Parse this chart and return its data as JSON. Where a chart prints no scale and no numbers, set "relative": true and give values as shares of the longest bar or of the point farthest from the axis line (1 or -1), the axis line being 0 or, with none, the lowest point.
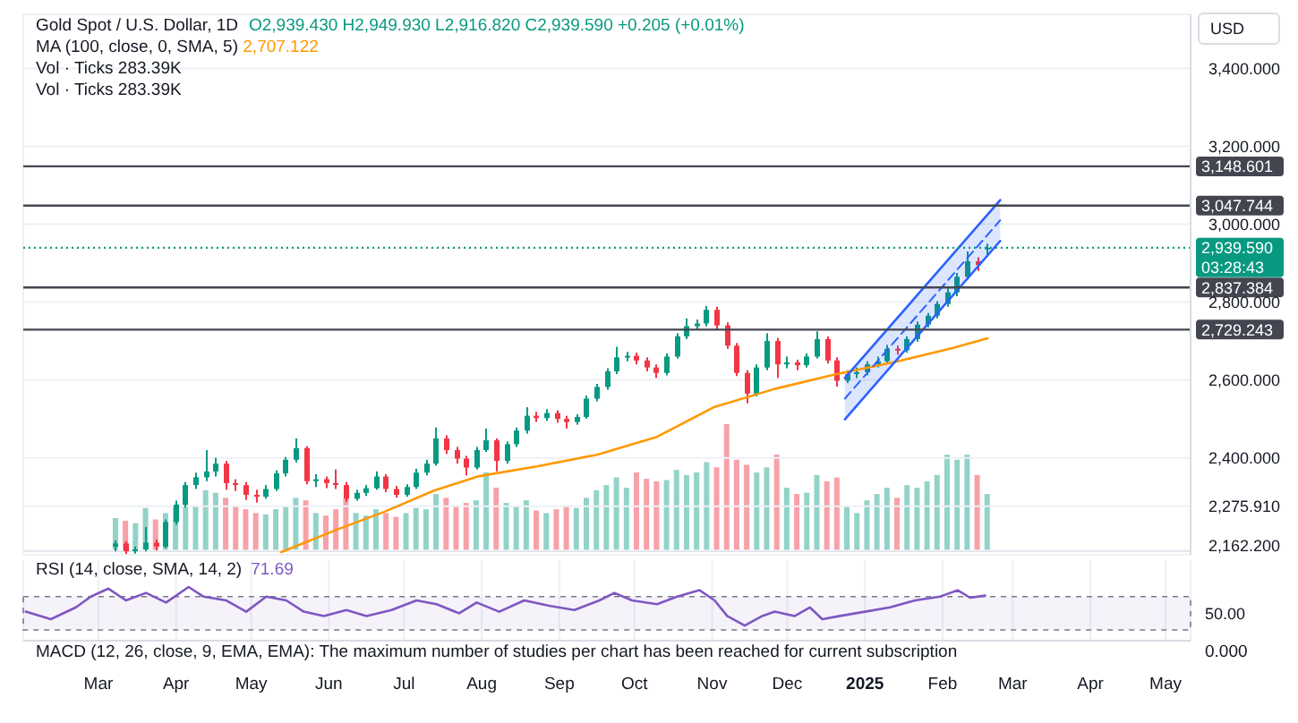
{
  "chart_data": [
    {
      "type": "candlestick",
      "title": "Gold Spot / U.S. Dollar, 1D",
      "ylabel": "USD",
      "annotations": [
        "O2,939.430 H2,949.930 L2,916.820 C2,939.590 +0.205 (+0.01%)",
        "MA (100, close, 0, SMA, 5) 2,707.122",
        "03:28:43"
      ],
      "x": [
        "2024-03-08",
        "2024-03-12",
        "2024-03-16",
        "2024-03-20",
        "2024-03-24",
        "2024-03-28",
        "2024-04-01",
        "2024-04-05",
        "2024-04-09",
        "2024-04-13",
        "2024-04-17",
        "2024-04-21",
        "2024-04-25",
        "2024-04-29",
        "2024-05-03",
        "2024-05-07",
        "2024-05-11",
        "2024-05-15",
        "2024-05-19",
        "2024-05-23",
        "2024-05-27",
        "2024-05-31",
        "2024-06-04",
        "2024-06-08",
        "2024-06-12",
        "2024-06-16",
        "2024-06-20",
        "2024-06-24",
        "2024-06-28",
        "2024-07-02",
        "2024-07-06",
        "2024-07-10",
        "2024-07-14",
        "2024-07-18",
        "2024-07-22",
        "2024-07-26",
        "2024-07-30",
        "2024-08-03",
        "2024-08-07",
        "2024-08-11",
        "2024-08-15",
        "2024-08-19",
        "2024-08-23",
        "2024-08-27",
        "2024-08-31",
        "2024-09-04",
        "2024-09-08",
        "2024-09-12",
        "2024-09-16",
        "2024-09-20",
        "2024-09-24",
        "2024-09-28",
        "2024-10-02",
        "2024-10-06",
        "2024-10-10",
        "2024-10-14",
        "2024-10-18",
        "2024-10-22",
        "2024-10-26",
        "2024-10-30",
        "2024-11-03",
        "2024-11-07",
        "2024-11-11",
        "2024-11-15",
        "2024-11-19",
        "2024-11-23",
        "2024-11-27",
        "2024-12-01",
        "2024-12-05",
        "2024-12-09",
        "2024-12-13",
        "2024-12-17",
        "2024-12-21",
        "2024-12-25",
        "2024-12-29",
        "2025-01-02",
        "2025-01-06",
        "2025-01-10",
        "2025-01-14",
        "2025-01-18",
        "2025-01-22",
        "2025-01-26",
        "2025-01-30",
        "2025-02-03",
        "2025-02-07",
        "2025-02-11",
        "2025-02-15",
        "2025-02-19"
      ],
      "ohlc": [
        [
          2172,
          2188,
          2160,
          2180
        ],
        [
          2180,
          2186,
          2153,
          2160
        ],
        [
          2160,
          2172,
          2154,
          2165
        ],
        [
          2165,
          2222,
          2160,
          2182
        ],
        [
          2182,
          2190,
          2162,
          2172
        ],
        [
          2172,
          2242,
          2168,
          2235
        ],
        [
          2235,
          2290,
          2228,
          2280
        ],
        [
          2280,
          2338,
          2272,
          2330
        ],
        [
          2330,
          2362,
          2320,
          2350
        ],
        [
          2350,
          2420,
          2340,
          2365
        ],
        [
          2365,
          2400,
          2352,
          2385
        ],
        [
          2385,
          2392,
          2318,
          2335
        ],
        [
          2335,
          2345,
          2315,
          2330
        ],
        [
          2330,
          2338,
          2292,
          2305
        ],
        [
          2305,
          2318,
          2285,
          2300
        ],
        [
          2300,
          2330,
          2295,
          2320
        ],
        [
          2320,
          2368,
          2315,
          2360
        ],
        [
          2360,
          2402,
          2352,
          2395
        ],
        [
          2395,
          2450,
          2388,
          2425
        ],
        [
          2425,
          2430,
          2332,
          2340
        ],
        [
          2340,
          2358,
          2325,
          2345
        ],
        [
          2345,
          2352,
          2322,
          2335
        ],
        [
          2335,
          2370,
          2320,
          2330
        ],
        [
          2330,
          2338,
          2287,
          2295
        ],
        [
          2295,
          2318,
          2290,
          2310
        ],
        [
          2310,
          2330,
          2302,
          2322
        ],
        [
          2322,
          2365,
          2318,
          2352
        ],
        [
          2352,
          2358,
          2312,
          2320
        ],
        [
          2320,
          2328,
          2298,
          2305
        ],
        [
          2305,
          2332,
          2300,
          2325
        ],
        [
          2325,
          2372,
          2320,
          2362
        ],
        [
          2362,
          2395,
          2355,
          2385
        ],
        [
          2385,
          2478,
          2380,
          2450
        ],
        [
          2450,
          2458,
          2410,
          2420
        ],
        [
          2420,
          2428,
          2385,
          2398
        ],
        [
          2398,
          2405,
          2355,
          2375
        ],
        [
          2375,
          2428,
          2370,
          2420
        ],
        [
          2420,
          2475,
          2415,
          2445
        ],
        [
          2445,
          2450,
          2365,
          2392
        ],
        [
          2392,
          2442,
          2385,
          2435
        ],
        [
          2435,
          2478,
          2428,
          2470
        ],
        [
          2470,
          2530,
          2462,
          2508
        ],
        [
          2508,
          2518,
          2492,
          2502
        ],
        [
          2502,
          2525,
          2495,
          2515
        ],
        [
          2515,
          2522,
          2490,
          2500
        ],
        [
          2500,
          2508,
          2475,
          2492
        ],
        [
          2492,
          2512,
          2485,
          2505
        ],
        [
          2505,
          2560,
          2500,
          2552
        ],
        [
          2552,
          2590,
          2545,
          2582
        ],
        [
          2582,
          2630,
          2575,
          2622
        ],
        [
          2622,
          2685,
          2615,
          2658
        ],
        [
          2658,
          2672,
          2648,
          2662
        ],
        [
          2662,
          2670,
          2640,
          2650
        ],
        [
          2650,
          2658,
          2622,
          2632
        ],
        [
          2632,
          2640,
          2605,
          2618
        ],
        [
          2618,
          2668,
          2612,
          2660
        ],
        [
          2660,
          2720,
          2655,
          2712
        ],
        [
          2712,
          2758,
          2705,
          2738
        ],
        [
          2738,
          2755,
          2728,
          2745
        ],
        [
          2745,
          2790,
          2738,
          2780
        ],
        [
          2780,
          2788,
          2730,
          2740
        ],
        [
          2740,
          2748,
          2680,
          2688
        ],
        [
          2688,
          2695,
          2610,
          2618
        ],
        [
          2618,
          2625,
          2540,
          2565
        ],
        [
          2565,
          2640,
          2558,
          2632
        ],
        [
          2632,
          2720,
          2625,
          2700
        ],
        [
          2700,
          2708,
          2605,
          2640
        ],
        [
          2640,
          2660,
          2630,
          2645
        ],
        [
          2645,
          2652,
          2625,
          2638
        ],
        [
          2638,
          2668,
          2632,
          2660
        ],
        [
          2660,
          2725,
          2655,
          2705
        ],
        [
          2705,
          2712,
          2642,
          2650
        ],
        [
          2650,
          2658,
          2583,
          2598
        ],
        [
          2598,
          2625,
          2592,
          2615
        ],
        [
          2615,
          2632,
          2605,
          2620
        ],
        [
          2620,
          2648,
          2612,
          2640
        ],
        [
          2640,
          2660,
          2632,
          2648
        ],
        [
          2648,
          2690,
          2642,
          2680
        ],
        [
          2680,
          2688,
          2665,
          2676
        ],
        [
          2676,
          2712,
          2670,
          2705
        ],
        [
          2705,
          2750,
          2698,
          2742
        ],
        [
          2742,
          2772,
          2735,
          2765
        ],
        [
          2765,
          2802,
          2758,
          2795
        ],
        [
          2795,
          2835,
          2788,
          2825
        ],
        [
          2825,
          2875,
          2815,
          2865
        ],
        [
          2865,
          2930,
          2858,
          2905
        ],
        [
          2905,
          2915,
          2880,
          2895
        ],
        [
          2939.43,
          2949.93,
          2916.82,
          2939.59
        ]
      ],
      "colors": [
        "#089981",
        "#f23645",
        "#089981",
        "#089981",
        "#f23645",
        "#089981",
        "#089981",
        "#089981",
        "#089981",
        "#089981",
        "#089981",
        "#f23645",
        "#f23645",
        "#f23645",
        "#f23645",
        "#089981",
        "#089981",
        "#089981",
        "#089981",
        "#f23645",
        "#089981",
        "#f23645",
        "#f23645",
        "#f23645",
        "#089981",
        "#089981",
        "#089981",
        "#f23645",
        "#f23645",
        "#089981",
        "#089981",
        "#089981",
        "#089981",
        "#f23645",
        "#f23645",
        "#f23645",
        "#089981",
        "#089981",
        "#f23645",
        "#089981",
        "#089981",
        "#089981",
        "#f23645",
        "#089981",
        "#f23645",
        "#f23645",
        "#089981",
        "#089981",
        "#089981",
        "#089981",
        "#089981",
        "#089981",
        "#f23645",
        "#f23645",
        "#f23645",
        "#089981",
        "#089981",
        "#089981",
        "#089981",
        "#089981",
        "#f23645",
        "#f23645",
        "#f23645",
        "#f23645",
        "#089981",
        "#089981",
        "#f23645",
        "#089981",
        "#f23645",
        "#089981",
        "#089981",
        "#f23645",
        "#f23645",
        "#089981",
        "#089981",
        "#089981",
        "#089981",
        "#089981",
        "#f23645",
        "#089981",
        "#089981",
        "#089981",
        "#089981",
        "#089981",
        "#089981",
        "#089981",
        "#f23645",
        "#089981"
      ],
      "series": [
        {
          "type": "line",
          "color": "#ff9800",
          "x": [
            "2024-05-13",
            "2024-06-04",
            "2024-06-23",
            "2024-07-13",
            "2024-07-31",
            "2024-08-23",
            "2024-09-16",
            "2024-10-10",
            "2024-11-02",
            "2024-11-26",
            "2024-12-20",
            "2025-01-13",
            "2025-02-05",
            "2025-02-19"
          ],
          "values": [
            2158,
            2215,
            2261,
            2316,
            2353,
            2378,
            2408,
            2454,
            2531,
            2577,
            2614,
            2646,
            2682,
            2707.122
          ]
        },
        {
          "type": "line",
          "color": "#2962ff",
          "x": [
            "2024-12-24",
            "2025-02-24"
          ],
          "values": [
            2605,
            3062
          ]
        },
        {
          "type": "line",
          "color": "#2962ff",
          "x": [
            "2024-12-24",
            "2025-02-24"
          ],
          "values": [
            2499,
            2957
          ]
        },
        {
          "type": "line",
          "color": "#2962ff",
          "line_style": "dashed",
          "x": [
            "2024-12-24",
            "2025-02-24"
          ],
          "values": [
            2552,
            3010
          ],
          "lower": [
            2499,
            2957
          ],
          "upper": [
            2605,
            3062
          ]
        }
      ],
      "ref_lines": [
        {
          "axis": "y",
          "value": 3148.601,
          "label": "3,148.601",
          "color": "#434651"
        },
        {
          "axis": "y",
          "value": 3047.744,
          "label": "3,047.744",
          "color": "#434651"
        },
        {
          "axis": "y",
          "value": 2939.59,
          "label": "2,939.590",
          "color": "#089981",
          "line_style": "dotted"
        },
        {
          "axis": "y",
          "value": 2837.384,
          "label": "2,837.384",
          "color": "#434651"
        },
        {
          "axis": "y",
          "value": 2729.243,
          "label": "2,729.243",
          "color": "#434651"
        }
      ],
      "xlim": [
        "2024-01-31",
        "2025-05-11"
      ],
      "xticks": [
        "2024-03-01",
        "2024-04-01",
        "2024-05-01",
        "2024-06-01",
        "2024-07-01",
        "2024-08-01",
        "2024-09-01",
        "2024-10-01",
        "2024-11-01",
        "2024-12-01",
        "2025-01-01",
        "2025-02-01",
        "2025-03-01",
        "2025-04-01",
        "2025-05-01"
      ],
      "ylim": [
        2151,
        3539
      ],
      "yticks": [
        {
          "value": 2162.2,
          "label": "2,162.200"
        },
        {
          "value": 2275.91,
          "label": "2,275.910"
        },
        {
          "value": 2400,
          "label": "2,400.000"
        },
        {
          "value": 2600,
          "label": "2,600.000"
        },
        {
          "value": 2800,
          "label": "2,800.000"
        },
        {
          "value": 3000,
          "label": "3,000.000"
        },
        {
          "value": 3200,
          "label": "3,200.000"
        },
        {
          "value": 3400,
          "label": "3,400.000"
        }
      ],
      "grid": true,
      "tick_labels": "y"
    },
    {
      "type": "bar",
      "relative": true,
      "annotations": [
        "Vol · Ticks 283.39K",
        "Vol · Ticks 283.39K"
      ],
      "x": [
        "2024-03-08",
        "2024-03-12",
        "2024-03-16",
        "2024-03-20",
        "2024-03-24",
        "2024-03-28",
        "2024-04-01",
        "2024-04-05",
        "2024-04-09",
        "2024-04-13",
        "2024-04-17",
        "2024-04-21",
        "2024-04-25",
        "2024-04-29",
        "2024-05-03",
        "2024-05-07",
        "2024-05-11",
        "2024-05-15",
        "2024-05-19",
        "2024-05-23",
        "2024-05-27",
        "2024-05-31",
        "2024-06-04",
        "2024-06-08",
        "2024-06-12",
        "2024-06-16",
        "2024-06-20",
        "2024-06-24",
        "2024-06-28",
        "2024-07-02",
        "2024-07-06",
        "2024-07-10",
        "2024-07-14",
        "2024-07-18",
        "2024-07-22",
        "2024-07-26",
        "2024-07-30",
        "2024-08-03",
        "2024-08-07",
        "2024-08-11",
        "2024-08-15",
        "2024-08-19",
        "2024-08-23",
        "2024-08-27",
        "2024-08-31",
        "2024-09-04",
        "2024-09-08",
        "2024-09-12",
        "2024-09-16",
        "2024-09-20",
        "2024-09-24",
        "2024-09-28",
        "2024-10-02",
        "2024-10-06",
        "2024-10-10",
        "2024-10-14",
        "2024-10-18",
        "2024-10-22",
        "2024-10-26",
        "2024-10-30",
        "2024-11-03",
        "2024-11-07",
        "2024-11-11",
        "2024-11-15",
        "2024-11-19",
        "2024-11-23",
        "2024-11-27",
        "2024-12-01",
        "2024-12-05",
        "2024-12-09",
        "2024-12-13",
        "2024-12-17",
        "2024-12-21",
        "2024-12-25",
        "2024-12-29",
        "2025-01-02",
        "2025-01-06",
        "2025-01-10",
        "2025-01-14",
        "2025-01-18",
        "2025-01-22",
        "2025-01-26",
        "2025-01-30",
        "2025-02-03",
        "2025-02-07",
        "2025-02-11",
        "2025-02-15",
        "2025-02-19"
      ],
      "values": [
        0.26,
        0.24,
        0.22,
        0.34,
        0.25,
        0.3,
        0.36,
        0.38,
        0.36,
        0.48,
        0.46,
        0.42,
        0.36,
        0.33,
        0.3,
        0.29,
        0.33,
        0.35,
        0.42,
        0.4,
        0.3,
        0.28,
        0.33,
        0.42,
        0.3,
        0.28,
        0.33,
        0.3,
        0.27,
        0.3,
        0.34,
        0.33,
        0.45,
        0.42,
        0.36,
        0.38,
        0.4,
        0.62,
        0.5,
        0.38,
        0.35,
        0.4,
        0.32,
        0.3,
        0.33,
        0.36,
        0.34,
        0.42,
        0.48,
        0.52,
        0.58,
        0.5,
        0.62,
        0.57,
        0.55,
        0.56,
        0.64,
        0.6,
        0.62,
        0.7,
        0.66,
        1,
        0.72,
        0.68,
        0.62,
        0.66,
        0.76,
        0.5,
        0.45,
        0.46,
        0.6,
        0.55,
        0.58,
        0.35,
        0.3,
        0.4,
        0.45,
        0.5,
        0.42,
        0.52,
        0.5,
        0.55,
        0.6,
        0.76,
        0.72,
        0.76,
        0.6,
        0.45
      ],
      "colors": [
        "#92d3c8",
        "#f7a1a8",
        "#92d3c8",
        "#92d3c8",
        "#f7a1a8",
        "#92d3c8",
        "#92d3c8",
        "#92d3c8",
        "#92d3c8",
        "#92d3c8",
        "#92d3c8",
        "#f7a1a8",
        "#f7a1a8",
        "#f7a1a8",
        "#f7a1a8",
        "#92d3c8",
        "#92d3c8",
        "#92d3c8",
        "#92d3c8",
        "#f7a1a8",
        "#92d3c8",
        "#f7a1a8",
        "#f7a1a8",
        "#f7a1a8",
        "#92d3c8",
        "#92d3c8",
        "#92d3c8",
        "#f7a1a8",
        "#f7a1a8",
        "#92d3c8",
        "#92d3c8",
        "#92d3c8",
        "#92d3c8",
        "#f7a1a8",
        "#f7a1a8",
        "#f7a1a8",
        "#92d3c8",
        "#92d3c8",
        "#f7a1a8",
        "#92d3c8",
        "#92d3c8",
        "#92d3c8",
        "#f7a1a8",
        "#92d3c8",
        "#f7a1a8",
        "#f7a1a8",
        "#92d3c8",
        "#92d3c8",
        "#92d3c8",
        "#92d3c8",
        "#92d3c8",
        "#92d3c8",
        "#f7a1a8",
        "#f7a1a8",
        "#f7a1a8",
        "#92d3c8",
        "#92d3c8",
        "#92d3c8",
        "#92d3c8",
        "#92d3c8",
        "#f7a1a8",
        "#f7a1a8",
        "#f7a1a8",
        "#f7a1a8",
        "#92d3c8",
        "#92d3c8",
        "#f7a1a8",
        "#92d3c8",
        "#f7a1a8",
        "#92d3c8",
        "#92d3c8",
        "#f7a1a8",
        "#f7a1a8",
        "#92d3c8",
        "#92d3c8",
        "#92d3c8",
        "#92d3c8",
        "#92d3c8",
        "#f7a1a8",
        "#92d3c8",
        "#92d3c8",
        "#92d3c8",
        "#92d3c8",
        "#92d3c8",
        "#92d3c8",
        "#92d3c8",
        "#f7a1a8",
        "#92d3c8"
      ],
      "xlim": [
        "2024-01-31",
        "2025-05-11"
      ],
      "tick_labels": false
    },
    {
      "type": "line",
      "relative": true,
      "annotations": [
        "71.69",
        "50.00"
      ],
      "series": [
        {
          "name": "RSI (14, close, SMA, 14, 2)",
          "color": "#7e57c2",
          "x": [
            "2024-02-01",
            "2024-02-11",
            "2024-02-21",
            "2024-02-27",
            "2024-03-05",
            "2024-03-12",
            "2024-03-20",
            "2024-03-28",
            "2024-04-06",
            "2024-04-12",
            "2024-04-21",
            "2024-04-29",
            "2024-05-07",
            "2024-05-15",
            "2024-05-22",
            "2024-05-30",
            "2024-06-08",
            "2024-06-16",
            "2024-06-26",
            "2024-07-06",
            "2024-07-14",
            "2024-07-23",
            "2024-07-30",
            "2024-08-08",
            "2024-08-18",
            "2024-08-28",
            "2024-09-07",
            "2024-09-17",
            "2024-09-23",
            "2024-09-30",
            "2024-10-10",
            "2024-10-18",
            "2024-10-27",
            "2024-11-02",
            "2024-11-07",
            "2024-11-14",
            "2024-11-21",
            "2024-11-26",
            "2024-12-04",
            "2024-12-10",
            "2024-12-15",
            "2024-12-22",
            "2025-01-01",
            "2025-01-11",
            "2025-01-21",
            "2025-01-31",
            "2025-02-07",
            "2025-02-12",
            "2025-02-18"
          ],
          "values": [
            0.54,
            0.4,
            0.62,
            0.82,
            0.97,
            0.75,
            0.89,
            0.71,
            1,
            0.82,
            0.75,
            0.54,
            0.82,
            0.75,
            0.54,
            0.46,
            0.57,
            0.46,
            0.57,
            0.75,
            0.68,
            0.51,
            0.71,
            0.54,
            0.75,
            0.65,
            0.57,
            0.75,
            0.89,
            0.75,
            0.68,
            0.82,
            0.94,
            0.75,
            0.46,
            0.28,
            0.46,
            0.54,
            0.46,
            0.62,
            0.4,
            0.46,
            0.54,
            0.62,
            0.75,
            0.82,
            0.94,
            0.8,
            0.84
          ]
        }
      ],
      "bands": [
        {
          "axis": "y",
          "from": 0.2,
          "to": 0.82,
          "color": "#7e57c2"
        }
      ],
      "xlim": [
        "2024-01-31",
        "2025-05-11"
      ],
      "xticks": [
        {
          "value": "2024-03-01",
          "label": "Mar"
        },
        {
          "value": "2024-04-01",
          "label": "Apr"
        },
        {
          "value": "2024-05-01",
          "label": "May"
        },
        {
          "value": "2024-06-01",
          "label": "Jun"
        },
        {
          "value": "2024-07-01",
          "label": "Jul"
        },
        {
          "value": "2024-08-01",
          "label": "Aug"
        },
        {
          "value": "2024-09-01",
          "label": "Sep"
        },
        {
          "value": "2024-10-01",
          "label": "Oct"
        },
        {
          "value": "2024-11-01",
          "label": "Nov"
        },
        {
          "value": "2024-12-01",
          "label": "Dec"
        },
        {
          "value": "2025-01-01",
          "label": "2025"
        },
        {
          "value": "2025-02-01",
          "label": "Feb"
        },
        {
          "value": "2025-03-01",
          "label": "Mar"
        },
        {
          "value": "2025-04-01",
          "label": "Apr"
        },
        {
          "value": "2025-05-01",
          "label": "May"
        }
      ],
      "grid": "x",
      "legend": "top left"
    },
    {
      "type": "other",
      "annotations": [
        "MACD (12, 26, close, 9, EMA, EMA): The maximum number of studies per chart has been reached for current subscription",
        "0.000"
      ]
    }
  ]
}
